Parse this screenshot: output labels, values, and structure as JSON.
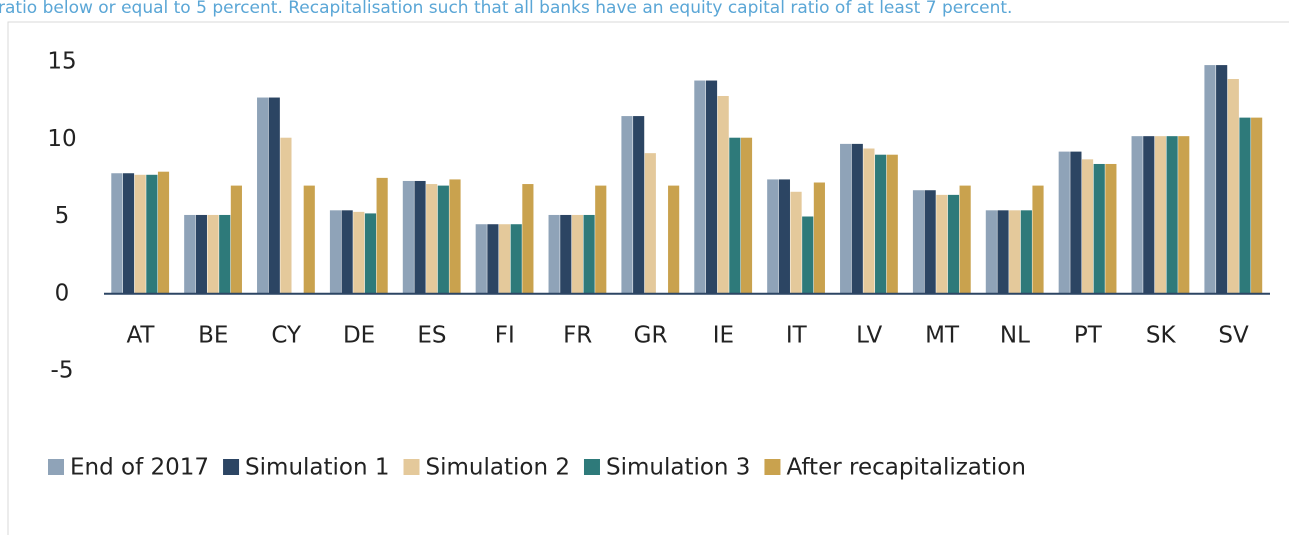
{
  "caption": "ratio below or equal to 5 percent. Recapitalisation such that all banks have an equity capital ratio of at least 7 percent.",
  "chart_data": {
    "type": "bar",
    "categories": [
      "AT",
      "BE",
      "CY",
      "DE",
      "ES",
      "FI",
      "FR",
      "GR",
      "IE",
      "IT",
      "LV",
      "MT",
      "NL",
      "PT",
      "SK",
      "SV"
    ],
    "series": [
      {
        "name": "End of 2017",
        "color": "#8fa3b8",
        "values": [
          7.8,
          5.1,
          12.7,
          5.4,
          7.3,
          4.5,
          5.1,
          11.5,
          13.8,
          7.4,
          9.7,
          6.7,
          5.4,
          9.2,
          10.2,
          14.8
        ]
      },
      {
        "name": "Simulation 1",
        "color": "#2c4563",
        "values": [
          7.8,
          5.1,
          12.7,
          5.4,
          7.3,
          4.5,
          5.1,
          11.5,
          13.8,
          7.4,
          9.7,
          6.7,
          5.4,
          9.2,
          10.2,
          14.8
        ]
      },
      {
        "name": "Simulation 2",
        "color": "#e4c99b",
        "values": [
          7.7,
          5.1,
          10.1,
          5.3,
          7.1,
          4.5,
          5.1,
          9.1,
          12.8,
          6.6,
          9.4,
          6.4,
          5.4,
          8.7,
          10.2,
          13.9
        ]
      },
      {
        "name": "Simulation 3",
        "color": "#2e7a7a",
        "values": [
          7.7,
          5.1,
          null,
          5.2,
          7.0,
          4.5,
          5.1,
          null,
          10.1,
          5.0,
          9.0,
          6.4,
          5.4,
          8.4,
          10.2,
          11.4
        ]
      },
      {
        "name": "After recapitalization",
        "color": "#c9a24e",
        "values": [
          7.9,
          7.0,
          7.0,
          7.5,
          7.4,
          7.1,
          7.0,
          7.0,
          10.1,
          7.2,
          9.0,
          7.0,
          7.0,
          8.4,
          10.2,
          11.4
        ]
      }
    ],
    "ylim": [
      -5,
      15
    ],
    "yticks": [
      -5,
      0,
      5,
      10,
      15
    ],
    "legend": "bottom"
  }
}
